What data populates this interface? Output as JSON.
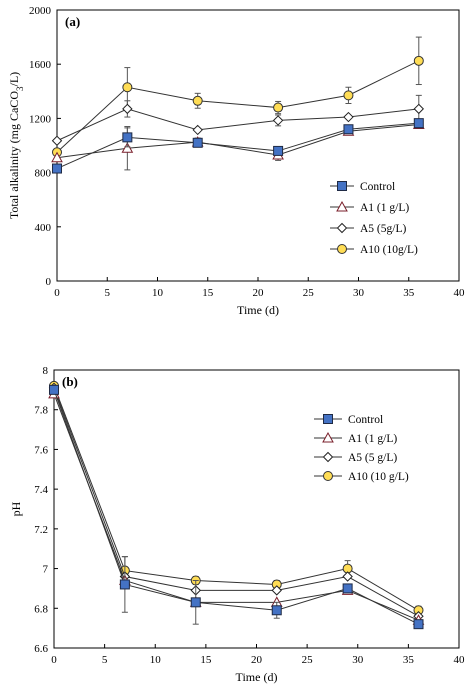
{
  "chart_data": [
    {
      "type": "line",
      "panel_label": "(a)",
      "xlabel": "Time (d)",
      "ylabel": "Total alkalinity (mg CaCO3/L)",
      "ylabel_main": "Total alkalinity (mg CaCO",
      "ylabel_sub": "3",
      "ylabel_end": "/L)",
      "xlim": [
        0,
        40
      ],
      "ylim": [
        0,
        2000
      ],
      "xticks": [
        "0",
        "5",
        "10",
        "15",
        "20",
        "25",
        "30",
        "35",
        "40"
      ],
      "yticks": [
        "0",
        "400",
        "800",
        "1200",
        "1600",
        "2000"
      ],
      "x": [
        0,
        7,
        14,
        22,
        29,
        36
      ],
      "legend_position": "lower-right",
      "series": [
        {
          "name": "Control",
          "marker": "square",
          "color": "#4472c4",
          "values": [
            830,
            1060,
            1020,
            960,
            1120,
            1165
          ],
          "errors": [
            0,
            70,
            0,
            0,
            0,
            0
          ]
        },
        {
          "name": "A1 (1 g/L)",
          "marker": "triangle",
          "color": "#ffffff",
          "values": [
            910,
            980,
            1025,
            930,
            1105,
            1155
          ],
          "errors": [
            0,
            160,
            30,
            40,
            0,
            0
          ]
        },
        {
          "name": "A5 (5g/L)",
          "marker": "diamond",
          "color": "#ffffff",
          "values": [
            1035,
            1270,
            1115,
            1185,
            1210,
            1270
          ],
          "errors": [
            0,
            60,
            0,
            40,
            0,
            100
          ]
        },
        {
          "name": "A10 (10g/L)",
          "marker": "circle",
          "color": "#ffdd55",
          "values": [
            950,
            1430,
            1330,
            1280,
            1370,
            1625
          ],
          "errors": [
            0,
            145,
            55,
            45,
            60,
            175
          ]
        }
      ]
    },
    {
      "type": "line",
      "panel_label": "(b)",
      "xlabel": "Time (d)",
      "ylabel": "pH",
      "xlim": [
        0,
        40
      ],
      "ylim": [
        6.6,
        8.0
      ],
      "xticks": [
        "0",
        "5",
        "10",
        "15",
        "20",
        "25",
        "30",
        "35",
        "40"
      ],
      "yticks": [
        "6.6",
        "6.8",
        "7",
        "7.2",
        "7.4",
        "7.6",
        "7.8",
        "8"
      ],
      "x": [
        0,
        7,
        14,
        22,
        29,
        36
      ],
      "legend_position": "top-right",
      "series": [
        {
          "name": "Control",
          "marker": "square",
          "color": "#4472c4",
          "values": [
            7.9,
            6.92,
            6.83,
            6.79,
            6.9,
            6.72
          ],
          "errors": [
            0,
            0.14,
            0.11,
            0.04,
            0,
            0
          ]
        },
        {
          "name": "A1 (1 g/L)",
          "marker": "triangle",
          "color": "#ffffff",
          "values": [
            7.88,
            6.94,
            6.83,
            6.83,
            6.89,
            6.74
          ],
          "errors": [
            0,
            0,
            0,
            0,
            0,
            0
          ]
        },
        {
          "name": "A5 (5 g/L)",
          "marker": "diamond",
          "color": "#ffffff",
          "values": [
            7.91,
            6.96,
            6.89,
            6.89,
            6.96,
            6.76
          ],
          "errors": [
            0,
            0,
            0,
            0,
            0,
            0
          ]
        },
        {
          "name": "A10 (10 g/L)",
          "marker": "circle",
          "color": "#ffdd55",
          "values": [
            7.92,
            6.99,
            6.94,
            6.92,
            7.0,
            6.79
          ],
          "errors": [
            0,
            0.07,
            0.02,
            0.02,
            0.04,
            0.02
          ]
        }
      ]
    }
  ]
}
